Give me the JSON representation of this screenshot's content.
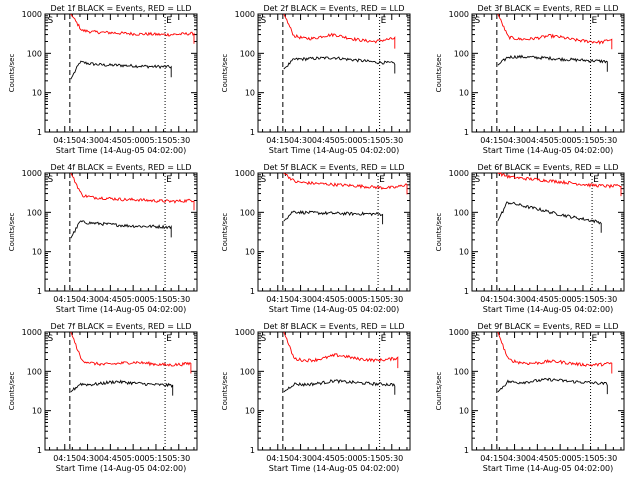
{
  "colors": {
    "background": "#ffffff",
    "axes": "#000000",
    "events": "#000000",
    "lld": "#ff0000"
  },
  "chart_data": [
    {
      "type": "line",
      "title": "Det 1f BLACK = Events, RED = LLD",
      "xlabel": "Start Time (14-Aug-05 04:02:00)",
      "ylabel": "Counts/sec",
      "xticks": [
        "04:15",
        "04:30",
        "04:45",
        "05:00",
        "05:15",
        "05:30"
      ],
      "yticks": [
        "1",
        "10",
        "100",
        "1000"
      ],
      "ylim": [
        1,
        1000
      ],
      "yscale": "log",
      "markers": [
        {
          "label": "S",
          "time": "04:03"
        },
        {
          "label": "E",
          "time": "05:21"
        }
      ],
      "series": [
        {
          "name": "Events",
          "color": "#000000",
          "start": "04:19",
          "end": "05:25",
          "values": [
            22,
            60,
            55,
            52,
            50,
            50,
            49,
            48,
            47,
            46,
            46,
            45
          ]
        },
        {
          "name": "LLD",
          "color": "#ff0000",
          "start": "04:19",
          "end": "05:40",
          "values": [
            1000,
            380,
            350,
            340,
            330,
            320,
            310,
            310,
            300,
            300,
            310,
            320
          ]
        }
      ]
    },
    {
      "type": "line",
      "title": "Det 2f BLACK = Events, RED = LLD",
      "xlabel": "Start Time (14-Aug-05 04:02:00)",
      "ylabel": "Counts/sec",
      "xticks": [
        "04:15",
        "04:30",
        "04:45",
        "05:00",
        "05:15",
        "05:30"
      ],
      "yticks": [
        "1",
        "10",
        "100",
        "1000"
      ],
      "ylim": [
        1,
        1000
      ],
      "yscale": "log",
      "markers": [
        {
          "label": "S",
          "time": "04:03"
        },
        {
          "label": "E",
          "time": "05:22"
        }
      ],
      "series": [
        {
          "name": "Events",
          "color": "#000000",
          "start": "04:19",
          "end": "05:32",
          "values": [
            40,
            70,
            72,
            74,
            76,
            78,
            72,
            68,
            64,
            60,
            58,
            56
          ]
        },
        {
          "name": "LLD",
          "color": "#ff0000",
          "start": "04:19",
          "end": "05:32",
          "values": [
            1000,
            280,
            240,
            240,
            280,
            300,
            260,
            230,
            210,
            200,
            220,
            240
          ]
        }
      ]
    },
    {
      "type": "line",
      "title": "Det 3f BLACK = Events, RED = LLD",
      "xlabel": "Start Time (14-Aug-05 04:02:00)",
      "ylabel": "Counts/sec",
      "xticks": [
        "04:15",
        "04:30",
        "04:45",
        "05:00",
        "05:15",
        "05:30"
      ],
      "yticks": [
        "1",
        "10",
        "100",
        "1000"
      ],
      "ylim": [
        1,
        1000
      ],
      "yscale": "log",
      "markers": [
        {
          "label": "S",
          "time": "04:03"
        },
        {
          "label": "E",
          "time": "05:20"
        }
      ],
      "series": [
        {
          "name": "Events",
          "color": "#000000",
          "start": "04:19",
          "end": "05:31",
          "values": [
            50,
            80,
            82,
            80,
            78,
            76,
            72,
            70,
            68,
            66,
            64,
            62
          ]
        },
        {
          "name": "LLD",
          "color": "#ff0000",
          "start": "04:19",
          "end": "05:34",
          "values": [
            1000,
            260,
            230,
            230,
            250,
            280,
            260,
            230,
            210,
            200,
            190,
            230
          ]
        }
      ]
    },
    {
      "type": "line",
      "title": "Det 4f BLACK = Events, RED = LLD",
      "xlabel": "Start Time (14-Aug-05 04:02:00)",
      "ylabel": "Counts/sec",
      "xticks": [
        "04:15",
        "04:30",
        "04:45",
        "05:00",
        "05:15",
        "05:30"
      ],
      "yticks": [
        "1",
        "10",
        "100",
        "1000"
      ],
      "ylim": [
        1,
        1000
      ],
      "yscale": "log",
      "markers": [
        {
          "label": "S",
          "time": "04:03"
        },
        {
          "label": "E",
          "time": "05:21"
        }
      ],
      "series": [
        {
          "name": "Events",
          "color": "#000000",
          "start": "04:19",
          "end": "05:25",
          "values": [
            22,
            58,
            54,
            52,
            50,
            48,
            46,
            45,
            44,
            44,
            43,
            42
          ]
        },
        {
          "name": "LLD",
          "color": "#ff0000",
          "start": "04:19",
          "end": "05:40",
          "values": [
            1000,
            270,
            240,
            230,
            220,
            210,
            210,
            200,
            195,
            190,
            195,
            205
          ]
        }
      ]
    },
    {
      "type": "line",
      "title": "Det 5f BLACK = Events, RED = LLD",
      "xlabel": "Start Time (14-Aug-05 04:02:00)",
      "ylabel": "Counts/sec",
      "xticks": [
        "04:15",
        "04:30",
        "04:45",
        "05:00",
        "05:15",
        "05:30"
      ],
      "yticks": [
        "1",
        "10",
        "100",
        "1000"
      ],
      "ylim": [
        1,
        1000
      ],
      "yscale": "log",
      "markers": [
        {
          "label": "S",
          "time": "04:03"
        },
        {
          "label": "E",
          "time": "05:21"
        }
      ],
      "series": [
        {
          "name": "Events",
          "color": "#000000",
          "start": "04:19",
          "end": "05:24",
          "values": [
            60,
            105,
            100,
            98,
            96,
            95,
            94,
            93,
            92,
            92,
            91,
            90
          ]
        },
        {
          "name": "LLD",
          "color": "#ff0000",
          "start": "04:19",
          "end": "05:40",
          "values": [
            1000,
            600,
            560,
            540,
            520,
            500,
            480,
            460,
            440,
            420,
            430,
            520
          ]
        }
      ]
    },
    {
      "type": "line",
      "title": "Det 6f BLACK = Events, RED = LLD",
      "xlabel": "Start Time (14-Aug-05 04:02:00)",
      "ylabel": "Counts/sec",
      "xticks": [
        "04:15",
        "04:30",
        "04:45",
        "05:00",
        "05:15",
        "05:30"
      ],
      "yticks": [
        "1",
        "10",
        "100",
        "1000"
      ],
      "ylim": [
        1,
        1000
      ],
      "yscale": "log",
      "markers": [
        {
          "label": "S",
          "time": "04:03"
        },
        {
          "label": "E",
          "time": "05:21"
        }
      ],
      "series": [
        {
          "name": "Events",
          "color": "#000000",
          "start": "04:19",
          "end": "05:27",
          "values": [
            60,
            180,
            160,
            140,
            125,
            110,
            95,
            85,
            75,
            68,
            62,
            55
          ]
        },
        {
          "name": "LLD",
          "color": "#ff0000",
          "start": "04:19",
          "end": "05:40",
          "values": [
            1000,
            800,
            740,
            700,
            660,
            620,
            580,
            540,
            500,
            480,
            460,
            470
          ]
        }
      ]
    },
    {
      "type": "line",
      "title": "Det 7f BLACK = Events, RED = LLD",
      "xlabel": "Start Time (14-Aug-05 04:02:00)",
      "ylabel": "Counts/sec",
      "xticks": [
        "04:15",
        "04:30",
        "04:45",
        "05:00",
        "05:15",
        "05:30"
      ],
      "yticks": [
        "1",
        "10",
        "100",
        "1000"
      ],
      "ylim": [
        1,
        1000
      ],
      "yscale": "log",
      "markers": [
        {
          "label": "S",
          "time": "04:03"
        },
        {
          "label": "E",
          "time": "05:21"
        }
      ],
      "series": [
        {
          "name": "Events",
          "color": "#000000",
          "start": "04:19",
          "end": "05:26",
          "values": [
            30,
            48,
            46,
            48,
            52,
            55,
            52,
            50,
            48,
            46,
            45,
            44
          ]
        },
        {
          "name": "LLD",
          "color": "#ff0000",
          "start": "04:19",
          "end": "05:38",
          "values": [
            1000,
            190,
            160,
            150,
            155,
            165,
            170,
            160,
            150,
            145,
            150,
            160
          ]
        }
      ]
    },
    {
      "type": "line",
      "title": "Det 8f BLACK = Events, RED = LLD",
      "xlabel": "Start Time (14-Aug-05 04:02:00)",
      "ylabel": "Counts/sec",
      "xticks": [
        "04:15",
        "04:30",
        "04:45",
        "05:00",
        "05:15",
        "05:30"
      ],
      "yticks": [
        "1",
        "10",
        "100",
        "1000"
      ],
      "ylim": [
        1,
        1000
      ],
      "yscale": "log",
      "markers": [
        {
          "label": "S",
          "time": "04:03"
        },
        {
          "label": "E",
          "time": "05:22"
        }
      ],
      "series": [
        {
          "name": "Events",
          "color": "#000000",
          "start": "04:19",
          "end": "05:32",
          "values": [
            30,
            48,
            46,
            48,
            52,
            58,
            54,
            52,
            50,
            48,
            47,
            46
          ]
        },
        {
          "name": "LLD",
          "color": "#ff0000",
          "start": "04:19",
          "end": "05:34",
          "values": [
            1000,
            210,
            190,
            195,
            220,
            260,
            240,
            210,
            200,
            190,
            200,
            220
          ]
        }
      ]
    },
    {
      "type": "line",
      "title": "Det 9f BLACK = Events, RED = LLD",
      "xlabel": "Start Time (14-Aug-05 04:02:00)",
      "ylabel": "Counts/sec",
      "xticks": [
        "04:15",
        "04:30",
        "04:45",
        "05:00",
        "05:15",
        "05:30"
      ],
      "yticks": [
        "1",
        "10",
        "100",
        "1000"
      ],
      "ylim": [
        1,
        1000
      ],
      "yscale": "log",
      "markers": [
        {
          "label": "S",
          "time": "04:03"
        },
        {
          "label": "E",
          "time": "05:20"
        }
      ],
      "series": [
        {
          "name": "Events",
          "color": "#000000",
          "start": "04:19",
          "end": "05:31",
          "values": [
            30,
            55,
            52,
            54,
            58,
            62,
            60,
            56,
            54,
            52,
            50,
            48
          ]
        },
        {
          "name": "LLD",
          "color": "#ff0000",
          "start": "04:19",
          "end": "05:34",
          "values": [
            1000,
            200,
            170,
            160,
            165,
            180,
            175,
            160,
            150,
            145,
            150,
            160
          ]
        }
      ]
    }
  ]
}
